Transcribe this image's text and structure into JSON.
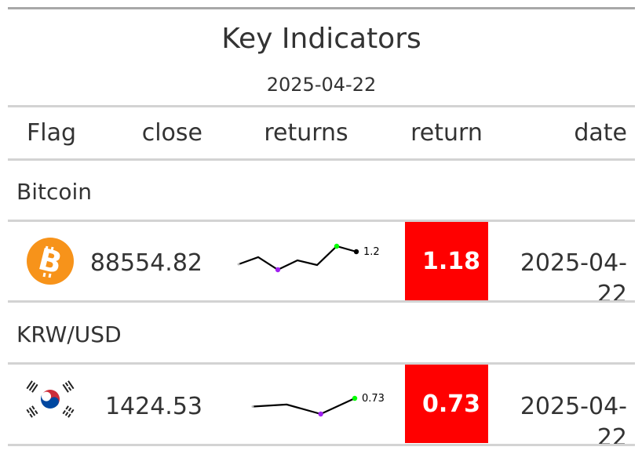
{
  "title": "Key Indicators",
  "subtitle": "2025-04-22",
  "columns": {
    "flag": "Flag",
    "close": "close",
    "returns": "returns",
    "return": "return",
    "date": "date"
  },
  "rows": [
    {
      "group": "Bitcoin",
      "icon": "bitcoin-icon",
      "close": "88554.82",
      "spark_label": "1.2",
      "return": "1.18",
      "date": "2025-04-22"
    },
    {
      "group": "KRW/USD",
      "icon": "south-korea-flag-icon",
      "close": "1424.53",
      "spark_label": "0.73",
      "return": "0.73",
      "date": "2025-04-22"
    }
  ],
  "colors": {
    "return_bg": "#ff0000",
    "bitcoin": "#f7931a",
    "spark_min": "#a020f0",
    "spark_max": "#00ff00"
  },
  "chart_data": {
    "type": "table",
    "series": [
      {
        "name": "Bitcoin",
        "values": [
          0.4,
          0.85,
          0.05,
          0.65,
          0.35,
          1.55,
          1.2
        ]
      },
      {
        "name": "KRW/USD",
        "values": [
          0.2,
          0.33,
          -0.28,
          0.73
        ]
      }
    ]
  }
}
